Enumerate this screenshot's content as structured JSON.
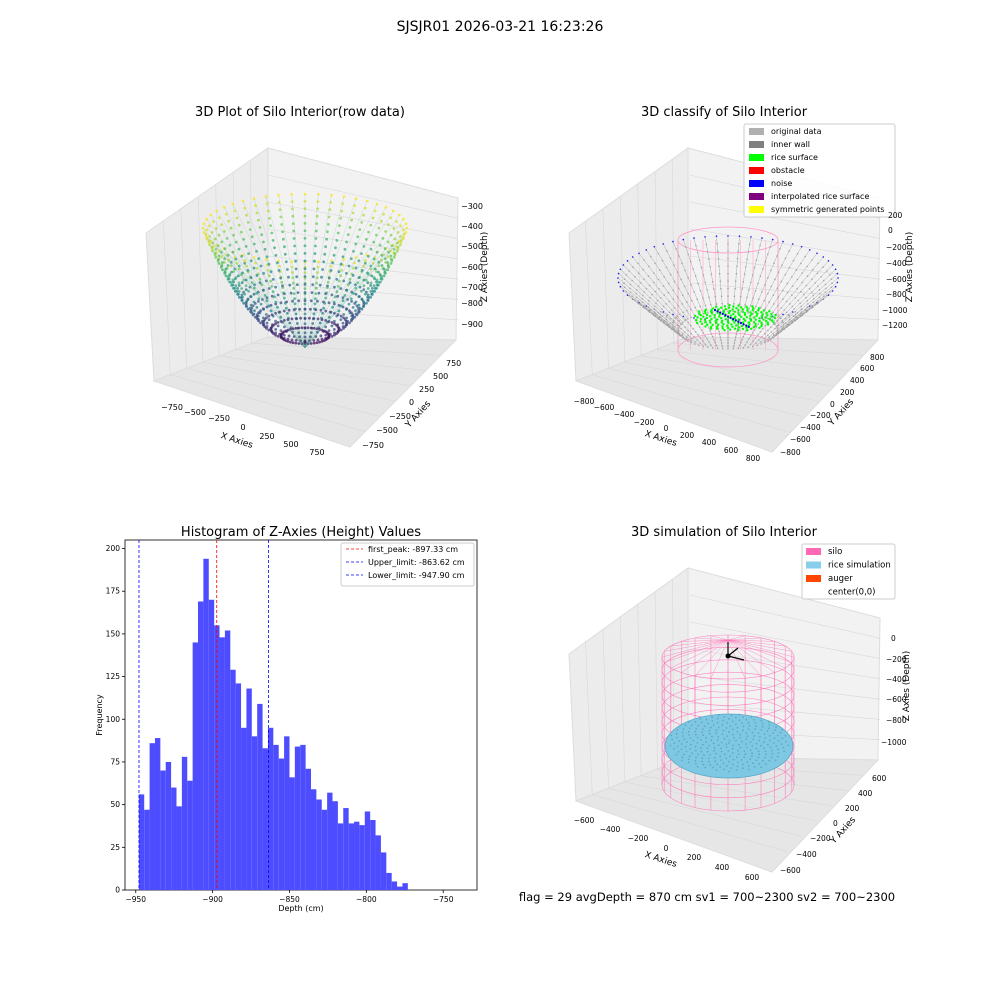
{
  "figure": {
    "suptitle": "SJSJR01 2026-03-21 16:23:26",
    "footer": "flag = 29  avgDepth = 870 cm  sv1 = 700~2300  sv2 = 700~2300"
  },
  "panels": {
    "raw": {
      "title": "3D Plot of Silo Interior(row data)",
      "xlabel": "X Axies",
      "ylabel": "Y Axies",
      "zlabel": "Z Axies (Depth)",
      "xticks": [
        "−750",
        "−500",
        "−250",
        "0",
        "250",
        "500",
        "750"
      ],
      "yticks": [
        "750",
        "500",
        "250",
        "0",
        "−250",
        "−500",
        "−750"
      ],
      "zticks": [
        "−300",
        "−400",
        "−500",
        "−600",
        "−700",
        "−800",
        "−900"
      ]
    },
    "classify": {
      "title": "3D classify of Silo Interior",
      "xlabel": "X Axies",
      "ylabel": "Y Axies",
      "zlabel": "Z Axies (Depth)",
      "xticks": [
        "−800",
        "−600",
        "−400",
        "−200",
        "0",
        "200",
        "400",
        "600",
        "800"
      ],
      "yticks": [
        "800",
        "600",
        "400",
        "200",
        "0",
        "−200",
        "−400",
        "−600",
        "−800"
      ],
      "zticks": [
        "200",
        "0",
        "−200",
        "−400",
        "−600",
        "−800",
        "−1000",
        "−1200"
      ],
      "legend": [
        {
          "label": "original data",
          "color": "#b0b0b0"
        },
        {
          "label": "inner wall",
          "color": "#808080"
        },
        {
          "label": "rice surface",
          "color": "#00ff00"
        },
        {
          "label": "obstacle",
          "color": "#ff0000"
        },
        {
          "label": "noise",
          "color": "#0000ff"
        },
        {
          "label": "interpolated rice surface",
          "color": "#800080"
        },
        {
          "label": "symmetric generated points",
          "color": "#ffff00"
        }
      ]
    },
    "simulation": {
      "title": "3D simulation of Silo Interior",
      "xlabel": "X Axies",
      "ylabel": "Y Axies",
      "zlabel": "Z Axies (Depth)",
      "xticks": [
        "−600",
        "−400",
        "−200",
        "0",
        "200",
        "400",
        "600"
      ],
      "yticks": [
        "600",
        "400",
        "200",
        "0",
        "−200",
        "−400",
        "−600"
      ],
      "zticks": [
        "0",
        "−200",
        "−400",
        "−600",
        "−800",
        "−1000"
      ],
      "legend": [
        {
          "label": "silo",
          "color": "#ff69b4"
        },
        {
          "label": "rice simulation",
          "color": "#87ceeb"
        },
        {
          "label": "auger",
          "color": "#ff4500"
        },
        {
          "label": "center(0,0)",
          "color": ""
        }
      ]
    }
  },
  "chart_data": [
    {
      "type": "scatter",
      "title": "3D Plot of Silo Interior(row data)",
      "xlabel": "X Axies",
      "ylabel": "Y Axies",
      "zlabel": "Z Axies (Depth)",
      "xlim": [
        -900,
        900
      ],
      "ylim": [
        -900,
        900
      ],
      "zlim": [
        -960,
        -280
      ],
      "colormap": "viridis",
      "shape": "bowl",
      "rim_depth": -480,
      "bottom_depth": -960
    },
    {
      "type": "scatter",
      "title": "3D classify of Silo Interior",
      "xlabel": "X Axies",
      "ylabel": "Y Axies",
      "zlabel": "Z Axies (Depth)",
      "xlim": [
        -900,
        900
      ],
      "ylim": [
        -900,
        900
      ],
      "zlim": [
        -1300,
        300
      ],
      "series": [
        {
          "name": "original data",
          "color": "#b0b0b0"
        },
        {
          "name": "inner wall",
          "color": "#808080"
        },
        {
          "name": "rice surface",
          "color": "#00ff00"
        },
        {
          "name": "obstacle",
          "color": "#ff0000"
        },
        {
          "name": "noise",
          "color": "#0000ff"
        },
        {
          "name": "interpolated rice surface",
          "color": "#800080"
        },
        {
          "name": "symmetric generated points",
          "color": "#ffff00"
        }
      ]
    },
    {
      "type": "bar",
      "title": "Histogram of Z-Axies (Height) Values",
      "xlabel": "Depth (cm)",
      "ylabel": "Frequency",
      "xlim": [
        -957,
        -728
      ],
      "ylim": [
        0,
        205
      ],
      "bin_start": -948,
      "bin_width": 3.5,
      "values": [
        56,
        47,
        86,
        89,
        70,
        75,
        60,
        49,
        78,
        64,
        145,
        169,
        194,
        170,
        155,
        148,
        152,
        129,
        121,
        95,
        118,
        90,
        109,
        83,
        95,
        85,
        77,
        90,
        66,
        84,
        85,
        71,
        59,
        53,
        47,
        57,
        52,
        39,
        48,
        39,
        40,
        38,
        46,
        41,
        32,
        22,
        10,
        5,
        2,
        4
      ],
      "xticks": [
        -950,
        -900,
        -850,
        -800,
        -750
      ],
      "xtick_labels": [
        "−950",
        "−900",
        "−850",
        "−800",
        "−750"
      ],
      "yticks": [
        0,
        25,
        50,
        75,
        100,
        125,
        150,
        175,
        200
      ],
      "ytick_labels": [
        "0",
        "25",
        "50",
        "75",
        "100",
        "125",
        "150",
        "175",
        "200"
      ],
      "bar_color": "#4d4dff",
      "lines": [
        {
          "label": "first_peak: -897.33 cm",
          "value": -897.33,
          "color": "#ff0000"
        },
        {
          "label": "Upper_limit: -863.62 cm",
          "value": -863.62,
          "color": "#0000ff"
        },
        {
          "label": "Lower_limit: -947.90 cm",
          "value": -947.9,
          "color": "#0000ff"
        }
      ],
      "legend": "top-right"
    },
    {
      "type": "scatter",
      "title": "3D simulation of Silo Interior",
      "xlabel": "X Axies",
      "ylabel": "Y Axies",
      "zlabel": "Z Axies (Depth)",
      "xlim": [
        -700,
        700
      ],
      "ylim": [
        -700,
        700
      ],
      "zlim": [
        -1200,
        150
      ],
      "series": [
        {
          "name": "silo",
          "color": "#ff69b4"
        },
        {
          "name": "rice simulation",
          "color": "#87ceeb"
        },
        {
          "name": "auger",
          "color": "#ff4500"
        },
        {
          "name": "center(0,0)",
          "color": "#000000"
        }
      ]
    }
  ]
}
